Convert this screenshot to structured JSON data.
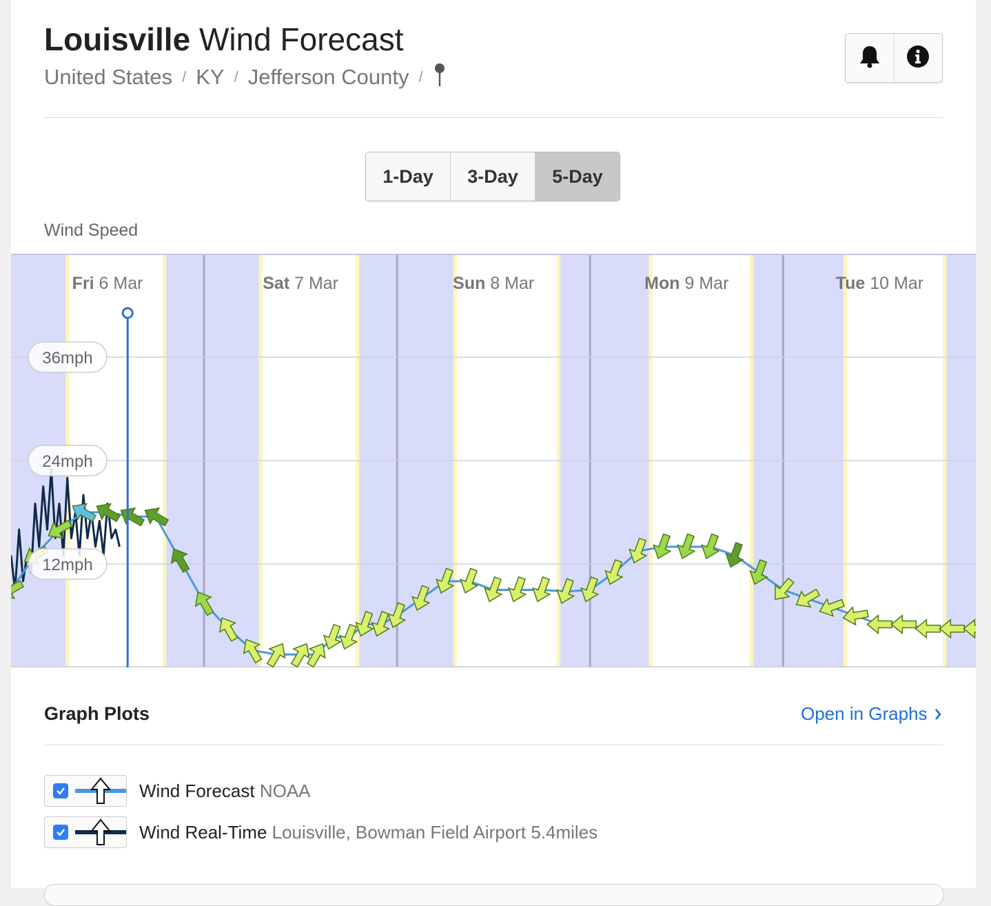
{
  "header": {
    "title_bold": "Louisville",
    "title_rest": " Wind Forecast",
    "breadcrumb": [
      "United States",
      "KY",
      "Jefferson County"
    ],
    "separator": "/"
  },
  "icons": {
    "alert": "bell-icon",
    "info": "info-icon",
    "pin": "location-pin-icon"
  },
  "range_tabs": [
    {
      "label": "1-Day",
      "active": false
    },
    {
      "label": "3-Day",
      "active": false
    },
    {
      "label": "5-Day",
      "active": true
    }
  ],
  "chart_section_label": "Wind Speed",
  "chart_data": {
    "type": "line",
    "title": "",
    "ylabel": "",
    "y_unit": "mph",
    "ylim": [
      0,
      36
    ],
    "y_ticks": [
      "12mph",
      "24mph",
      "36mph"
    ],
    "y_tick_values": [
      12,
      24,
      36
    ],
    "grid": true,
    "x_unit": "hours from start of Fri 6 Mar",
    "day_labels": [
      {
        "day": "Fri",
        "date": "6 Mar",
        "hour": 12
      },
      {
        "day": "Sat",
        "date": "7 Mar",
        "hour": 36
      },
      {
        "day": "Sun",
        "date": "8 Mar",
        "hour": 60
      },
      {
        "day": "Mon",
        "date": "9 Mar",
        "hour": 84
      },
      {
        "day": "Tue",
        "date": "10 Mar",
        "hour": 108
      }
    ],
    "now_hour": 14.5,
    "night_bands": [
      [
        -6,
        6.8
      ],
      [
        19.3,
        30.8
      ],
      [
        43.3,
        55
      ],
      [
        68.3,
        79.3
      ],
      [
        92.3,
        103.5
      ],
      [
        116.3,
        120
      ]
    ],
    "colors": {
      "night": "#d8dcfa",
      "twilight": "#fff5b8",
      "grid": "#cfd0de",
      "forecast_line": "#4a97e0",
      "realtime_line": "#0f2a4a",
      "now_marker": "#2e6fd8",
      "arrow_light": "#d8f06a",
      "arrow_mid": "#9ed84a",
      "arrow_dark": "#5e9e2c",
      "arrow_blue": "#5ec0ea"
    },
    "series": [
      {
        "name": "Wind Forecast NOAA",
        "x": [
          0,
          3,
          6,
          9,
          12,
          15,
          18,
          21,
          24,
          27,
          30,
          33,
          36,
          38,
          40,
          42,
          44,
          46,
          48,
          51,
          54,
          57,
          60,
          63,
          66,
          69,
          72,
          75,
          78,
          81,
          84,
          87,
          90,
          93,
          96,
          99,
          102,
          105,
          108,
          111,
          114,
          117,
          120
        ],
        "values": [
          9,
          13,
          16,
          18,
          18,
          17.5,
          17.5,
          12.5,
          7.5,
          4.5,
          2,
          1.5,
          1.5,
          1.5,
          3.5,
          3.5,
          5,
          5,
          6,
          8,
          10,
          10,
          9,
          9,
          9,
          8.8,
          9,
          11,
          13.5,
          14,
          14,
          14,
          13,
          11,
          9,
          8,
          7,
          6,
          5,
          5,
          4.5,
          4.5,
          4.5
        ],
        "arrow_direction_deg": [
          240,
          240,
          240,
          300,
          300,
          300,
          300,
          330,
          330,
          330,
          330,
          30,
          30,
          30,
          200,
          200,
          200,
          200,
          200,
          200,
          200,
          200,
          200,
          200,
          200,
          200,
          200,
          200,
          200,
          200,
          200,
          200,
          200,
          200,
          220,
          240,
          250,
          260,
          270,
          270,
          270,
          270,
          270
        ]
      },
      {
        "name": "Wind Real-Time Louisville, Bowman Field Airport 5.4miles",
        "x": [
          0,
          0.5,
          1,
          1.5,
          2,
          2.5,
          3,
          3.5,
          4,
          4.5,
          5,
          5.5,
          6,
          6.5,
          7,
          7.5,
          8,
          8.5,
          9,
          9.5,
          10,
          10.5,
          11,
          11.5,
          12,
          12.5,
          13,
          13.5
        ],
        "values": [
          13,
          9,
          16,
          10,
          13,
          11,
          19,
          14,
          21,
          16,
          23,
          15,
          19,
          13,
          22,
          15,
          18,
          13,
          20,
          15,
          18,
          14,
          17,
          13,
          19,
          15,
          16,
          14
        ]
      }
    ]
  },
  "plots": {
    "title": "Graph Plots",
    "open_link": "Open in Graphs",
    "items": [
      {
        "name": "Wind Forecast",
        "source": "NOAA",
        "checked": true,
        "line_color": "#4a97e0"
      },
      {
        "name": "Wind Real-Time",
        "source": "Louisville, Bowman Field Airport 5.4miles",
        "checked": true,
        "line_color": "#0f2a4a"
      }
    ]
  }
}
